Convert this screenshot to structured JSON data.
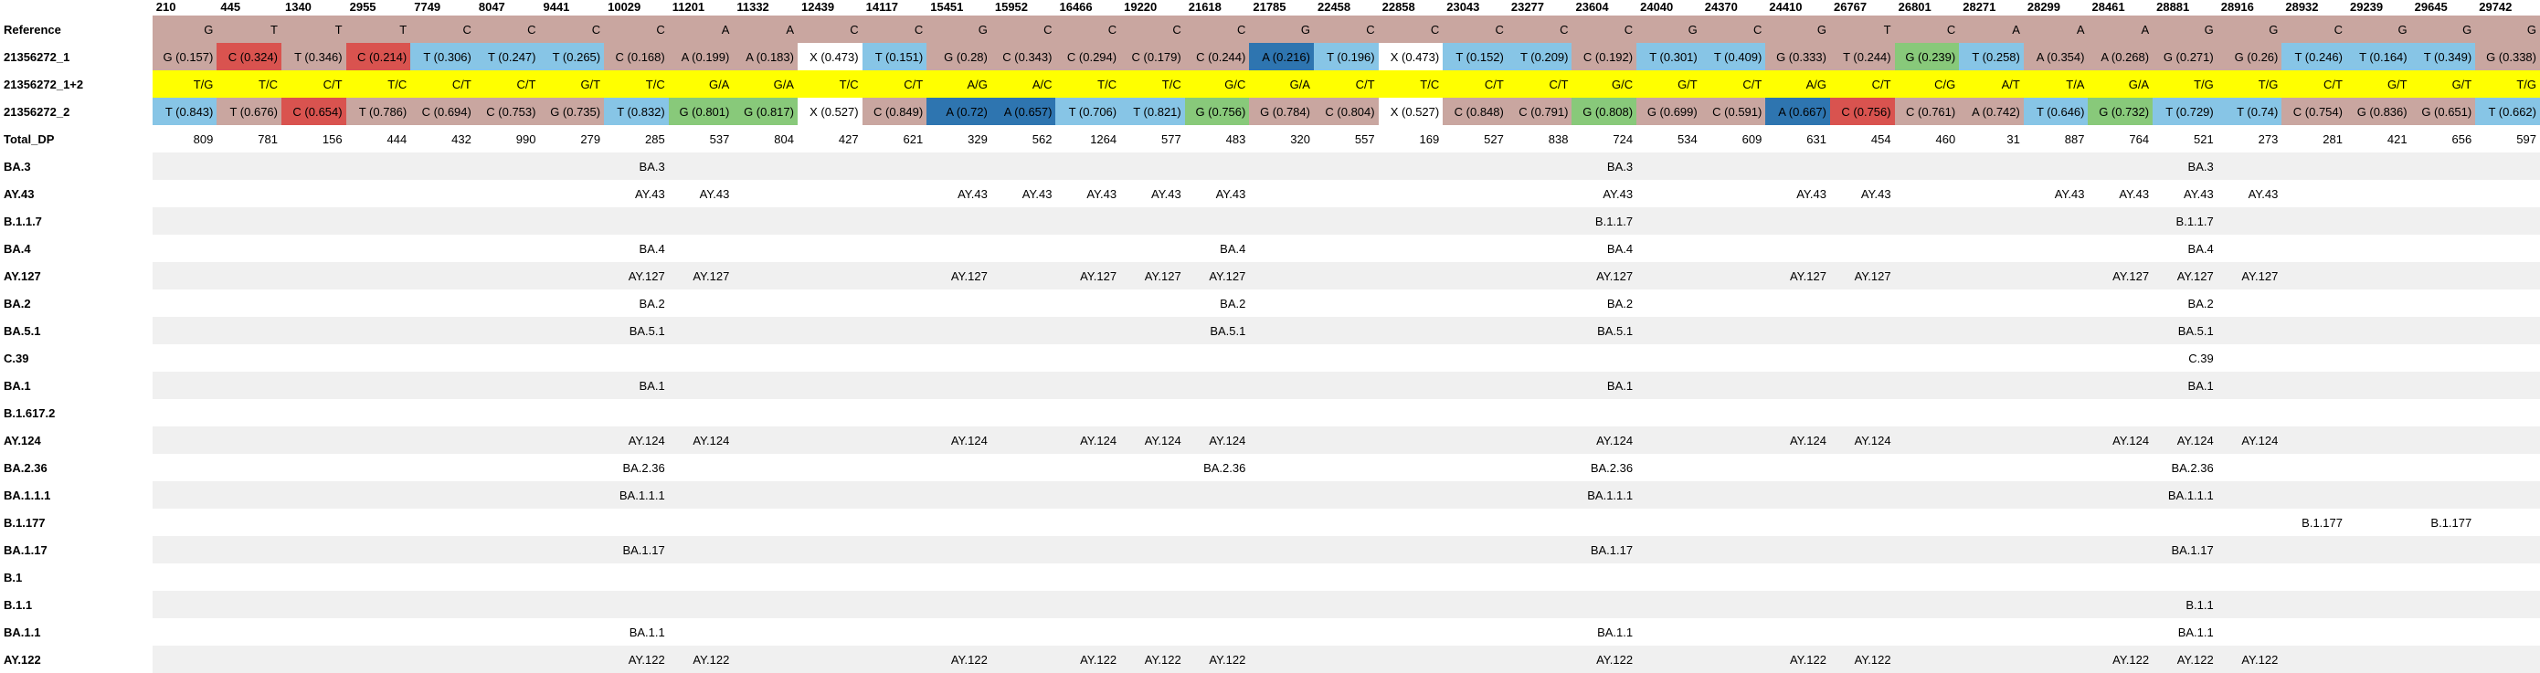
{
  "colors": {
    "G": "#c9a6a0",
    "T": "#87c5e6",
    "C": "#c9a6a0",
    "A": "#c9a6a0",
    "X": "#ffffff",
    "red": "#d9534f",
    "blue": "#2e75b0",
    "green": "#88c97a",
    "yellow": "#ffff00",
    "gray": "#f0f0f0"
  },
  "positions": [
    "210",
    "445",
    "1340",
    "2955",
    "7749",
    "8047",
    "9441",
    "10029",
    "11201",
    "11332",
    "12439",
    "14117",
    "15451",
    "15952",
    "16466",
    "19220",
    "21618",
    "21785",
    "22458",
    "22858",
    "23043",
    "23277",
    "23604",
    "24040",
    "24370",
    "24410",
    "26767",
    "26801",
    "28271",
    "28299",
    "28461",
    "28881",
    "28916",
    "28932",
    "29239",
    "29645",
    "29742"
  ],
  "rows": [
    {
      "label": "Reference",
      "cells": [
        {
          "t": "G",
          "c": "G"
        },
        {
          "t": "T",
          "c": "C"
        },
        {
          "t": "T",
          "c": "C"
        },
        {
          "t": "T",
          "c": "C"
        },
        {
          "t": "C",
          "c": "C"
        },
        {
          "t": "C",
          "c": "C"
        },
        {
          "t": "C",
          "c": "C"
        },
        {
          "t": "C",
          "c": "C"
        },
        {
          "t": "A",
          "c": "C"
        },
        {
          "t": "A",
          "c": "C"
        },
        {
          "t": "C",
          "c": "C"
        },
        {
          "t": "C",
          "c": "C"
        },
        {
          "t": "G",
          "c": "C"
        },
        {
          "t": "C",
          "c": "C"
        },
        {
          "t": "C",
          "c": "C"
        },
        {
          "t": "C",
          "c": "C"
        },
        {
          "t": "C",
          "c": "C"
        },
        {
          "t": "G",
          "c": "C"
        },
        {
          "t": "C",
          "c": "C"
        },
        {
          "t": "C",
          "c": "C"
        },
        {
          "t": "C",
          "c": "C"
        },
        {
          "t": "C",
          "c": "C"
        },
        {
          "t": "C",
          "c": "C"
        },
        {
          "t": "G",
          "c": "C"
        },
        {
          "t": "C",
          "c": "C"
        },
        {
          "t": "G",
          "c": "C"
        },
        {
          "t": "T",
          "c": "C"
        },
        {
          "t": "C",
          "c": "C"
        },
        {
          "t": "A",
          "c": "C"
        },
        {
          "t": "A",
          "c": "C"
        },
        {
          "t": "A",
          "c": "C"
        },
        {
          "t": "G",
          "c": "C"
        },
        {
          "t": "G",
          "c": "C"
        },
        {
          "t": "C",
          "c": "C"
        },
        {
          "t": "G",
          "c": "C"
        },
        {
          "t": "G",
          "c": "C"
        },
        {
          "t": "G",
          "c": "C"
        }
      ]
    },
    {
      "label": "21356272_1",
      "cells": [
        {
          "t": "G (0.157)",
          "c": "G"
        },
        {
          "t": "C (0.324)",
          "c": "red"
        },
        {
          "t": "T (0.346)",
          "c": "C"
        },
        {
          "t": "C (0.214)",
          "c": "red"
        },
        {
          "t": "T (0.306)",
          "c": "T"
        },
        {
          "t": "T (0.247)",
          "c": "T"
        },
        {
          "t": "T (0.265)",
          "c": "T"
        },
        {
          "t": "C (0.168)",
          "c": "C"
        },
        {
          "t": "A (0.199)",
          "c": "C"
        },
        {
          "t": "A (0.183)",
          "c": "C"
        },
        {
          "t": "X (0.473)",
          "c": "X"
        },
        {
          "t": "T (0.151)",
          "c": "T"
        },
        {
          "t": "G (0.28)",
          "c": "C"
        },
        {
          "t": "C (0.343)",
          "c": "C"
        },
        {
          "t": "C (0.294)",
          "c": "C"
        },
        {
          "t": "C (0.179)",
          "c": "C"
        },
        {
          "t": "C (0.244)",
          "c": "C"
        },
        {
          "t": "A (0.216)",
          "c": "blue"
        },
        {
          "t": "T (0.196)",
          "c": "T"
        },
        {
          "t": "X (0.473)",
          "c": "X"
        },
        {
          "t": "T (0.152)",
          "c": "T"
        },
        {
          "t": "T (0.209)",
          "c": "T"
        },
        {
          "t": "C (0.192)",
          "c": "C"
        },
        {
          "t": "T (0.301)",
          "c": "T"
        },
        {
          "t": "T (0.409)",
          "c": "T"
        },
        {
          "t": "G (0.333)",
          "c": "C"
        },
        {
          "t": "T (0.244)",
          "c": "C"
        },
        {
          "t": "G (0.239)",
          "c": "green"
        },
        {
          "t": "T (0.258)",
          "c": "T"
        },
        {
          "t": "A (0.354)",
          "c": "C"
        },
        {
          "t": "A (0.268)",
          "c": "C"
        },
        {
          "t": "G (0.271)",
          "c": "C"
        },
        {
          "t": "G (0.26)",
          "c": "C"
        },
        {
          "t": "T (0.246)",
          "c": "T"
        },
        {
          "t": "T (0.164)",
          "c": "T"
        },
        {
          "t": "T (0.349)",
          "c": "T"
        },
        {
          "t": "G (0.338)",
          "c": "C"
        }
      ]
    },
    {
      "label": "21356272_1+2",
      "cells": [
        {
          "t": "T/G",
          "c": "yellow"
        },
        {
          "t": "T/C",
          "c": "yellow"
        },
        {
          "t": "C/T",
          "c": "yellow"
        },
        {
          "t": "T/C",
          "c": "yellow"
        },
        {
          "t": "C/T",
          "c": "yellow"
        },
        {
          "t": "C/T",
          "c": "yellow"
        },
        {
          "t": "G/T",
          "c": "yellow"
        },
        {
          "t": "T/C",
          "c": "yellow"
        },
        {
          "t": "G/A",
          "c": "yellow"
        },
        {
          "t": "G/A",
          "c": "yellow"
        },
        {
          "t": "T/C",
          "c": "yellow"
        },
        {
          "t": "C/T",
          "c": "yellow"
        },
        {
          "t": "A/G",
          "c": "yellow"
        },
        {
          "t": "A/C",
          "c": "yellow"
        },
        {
          "t": "T/C",
          "c": "yellow"
        },
        {
          "t": "T/C",
          "c": "yellow"
        },
        {
          "t": "G/C",
          "c": "yellow"
        },
        {
          "t": "G/A",
          "c": "yellow"
        },
        {
          "t": "C/T",
          "c": "yellow"
        },
        {
          "t": "T/C",
          "c": "yellow"
        },
        {
          "t": "C/T",
          "c": "yellow"
        },
        {
          "t": "C/T",
          "c": "yellow"
        },
        {
          "t": "G/C",
          "c": "yellow"
        },
        {
          "t": "G/T",
          "c": "yellow"
        },
        {
          "t": "C/T",
          "c": "yellow"
        },
        {
          "t": "A/G",
          "c": "yellow"
        },
        {
          "t": "C/T",
          "c": "yellow"
        },
        {
          "t": "C/G",
          "c": "yellow"
        },
        {
          "t": "A/T",
          "c": "yellow"
        },
        {
          "t": "T/A",
          "c": "yellow"
        },
        {
          "t": "G/A",
          "c": "yellow"
        },
        {
          "t": "T/G",
          "c": "yellow"
        },
        {
          "t": "T/G",
          "c": "yellow"
        },
        {
          "t": "C/T",
          "c": "yellow"
        },
        {
          "t": "G/T",
          "c": "yellow"
        },
        {
          "t": "G/T",
          "c": "yellow"
        },
        {
          "t": "T/G",
          "c": "yellow"
        }
      ]
    },
    {
      "label": "21356272_2",
      "cells": [
        {
          "t": "T (0.843)",
          "c": "T"
        },
        {
          "t": "T (0.676)",
          "c": "C"
        },
        {
          "t": "C (0.654)",
          "c": "red"
        },
        {
          "t": "T (0.786)",
          "c": "C"
        },
        {
          "t": "C (0.694)",
          "c": "C"
        },
        {
          "t": "C (0.753)",
          "c": "C"
        },
        {
          "t": "G (0.735)",
          "c": "C"
        },
        {
          "t": "T (0.832)",
          "c": "T"
        },
        {
          "t": "G (0.801)",
          "c": "green"
        },
        {
          "t": "G (0.817)",
          "c": "green"
        },
        {
          "t": "X (0.527)",
          "c": "X"
        },
        {
          "t": "C (0.849)",
          "c": "C"
        },
        {
          "t": "A (0.72)",
          "c": "blue"
        },
        {
          "t": "A (0.657)",
          "c": "blue"
        },
        {
          "t": "T (0.706)",
          "c": "T"
        },
        {
          "t": "T (0.821)",
          "c": "T"
        },
        {
          "t": "G (0.756)",
          "c": "green"
        },
        {
          "t": "G (0.784)",
          "c": "C"
        },
        {
          "t": "C (0.804)",
          "c": "C"
        },
        {
          "t": "X (0.527)",
          "c": "X"
        },
        {
          "t": "C (0.848)",
          "c": "C"
        },
        {
          "t": "C (0.791)",
          "c": "C"
        },
        {
          "t": "G (0.808)",
          "c": "green"
        },
        {
          "t": "G (0.699)",
          "c": "C"
        },
        {
          "t": "C (0.591)",
          "c": "C"
        },
        {
          "t": "A (0.667)",
          "c": "blue"
        },
        {
          "t": "C (0.756)",
          "c": "red"
        },
        {
          "t": "C (0.761)",
          "c": "C"
        },
        {
          "t": "A (0.742)",
          "c": "C"
        },
        {
          "t": "T (0.646)",
          "c": "T"
        },
        {
          "t": "G (0.732)",
          "c": "green"
        },
        {
          "t": "T (0.729)",
          "c": "T"
        },
        {
          "t": "T (0.74)",
          "c": "T"
        },
        {
          "t": "C (0.754)",
          "c": "C"
        },
        {
          "t": "G (0.836)",
          "c": "C"
        },
        {
          "t": "G (0.651)",
          "c": "C"
        },
        {
          "t": "T (0.662)",
          "c": "T"
        }
      ]
    }
  ],
  "total_dp": {
    "label": "Total_DP",
    "values": [
      "809",
      "781",
      "156",
      "444",
      "432",
      "990",
      "279",
      "285",
      "537",
      "804",
      "427",
      "621",
      "329",
      "562",
      "1264",
      "577",
      "483",
      "320",
      "557",
      "169",
      "527",
      "838",
      "724",
      "534",
      "609",
      "631",
      "454",
      "460",
      "31",
      "887",
      "764",
      "521",
      "273",
      "281",
      "421",
      "656",
      "597"
    ]
  },
  "lineages": [
    {
      "label": "BA.3",
      "marks": {
        "7": "BA.3",
        "22": "BA.3",
        "31": "BA.3"
      }
    },
    {
      "label": "AY.43",
      "marks": {
        "7": "AY.43",
        "8": "AY.43",
        "12": "AY.43",
        "13": "AY.43",
        "14": "AY.43",
        "15": "AY.43",
        "16": "AY.43",
        "22": "AY.43",
        "25": "AY.43",
        "26": "AY.43",
        "29": "AY.43",
        "30": "AY.43",
        "31": "AY.43",
        "32": "AY.43"
      }
    },
    {
      "label": "B.1.1.7",
      "marks": {
        "22": "B.1.1.7",
        "31": "B.1.1.7"
      }
    },
    {
      "label": "BA.4",
      "marks": {
        "7": "BA.4",
        "16": "BA.4",
        "22": "BA.4",
        "31": "BA.4"
      }
    },
    {
      "label": "AY.127",
      "marks": {
        "7": "AY.127",
        "8": "AY.127",
        "12": "AY.127",
        "14": "AY.127",
        "15": "AY.127",
        "16": "AY.127",
        "22": "AY.127",
        "25": "AY.127",
        "26": "AY.127",
        "30": "AY.127",
        "31": "AY.127",
        "32": "AY.127"
      }
    },
    {
      "label": "BA.2",
      "marks": {
        "7": "BA.2",
        "16": "BA.2",
        "22": "BA.2",
        "31": "BA.2"
      }
    },
    {
      "label": "BA.5.1",
      "marks": {
        "7": "BA.5.1",
        "16": "BA.5.1",
        "22": "BA.5.1",
        "31": "BA.5.1"
      }
    },
    {
      "label": "C.39",
      "marks": {
        "31": "C.39"
      }
    },
    {
      "label": "BA.1",
      "marks": {
        "7": "BA.1",
        "22": "BA.1",
        "31": "BA.1"
      }
    },
    {
      "label": "B.1.617.2",
      "marks": {}
    },
    {
      "label": "AY.124",
      "marks": {
        "7": "AY.124",
        "8": "AY.124",
        "12": "AY.124",
        "14": "AY.124",
        "15": "AY.124",
        "16": "AY.124",
        "22": "AY.124",
        "25": "AY.124",
        "26": "AY.124",
        "30": "AY.124",
        "31": "AY.124",
        "32": "AY.124"
      }
    },
    {
      "label": "BA.2.36",
      "marks": {
        "7": "BA.2.36",
        "16": "BA.2.36",
        "22": "BA.2.36",
        "31": "BA.2.36"
      }
    },
    {
      "label": "BA.1.1.1",
      "marks": {
        "7": "BA.1.1.1",
        "22": "BA.1.1.1",
        "31": "BA.1.1.1"
      }
    },
    {
      "label": "B.1.177",
      "marks": {
        "33": "B.1.177",
        "35": "B.1.177"
      }
    },
    {
      "label": "BA.1.17",
      "marks": {
        "7": "BA.1.17",
        "22": "BA.1.17",
        "31": "BA.1.17"
      }
    },
    {
      "label": "B.1",
      "marks": {}
    },
    {
      "label": "B.1.1",
      "marks": {
        "31": "B.1.1"
      }
    },
    {
      "label": "BA.1.1",
      "marks": {
        "7": "BA.1.1",
        "22": "BA.1.1",
        "31": "BA.1.1"
      }
    },
    {
      "label": "AY.122",
      "marks": {
        "7": "AY.122",
        "8": "AY.122",
        "12": "AY.122",
        "14": "AY.122",
        "15": "AY.122",
        "16": "AY.122",
        "22": "AY.122",
        "25": "AY.122",
        "26": "AY.122",
        "30": "AY.122",
        "31": "AY.122",
        "32": "AY.122"
      }
    }
  ]
}
